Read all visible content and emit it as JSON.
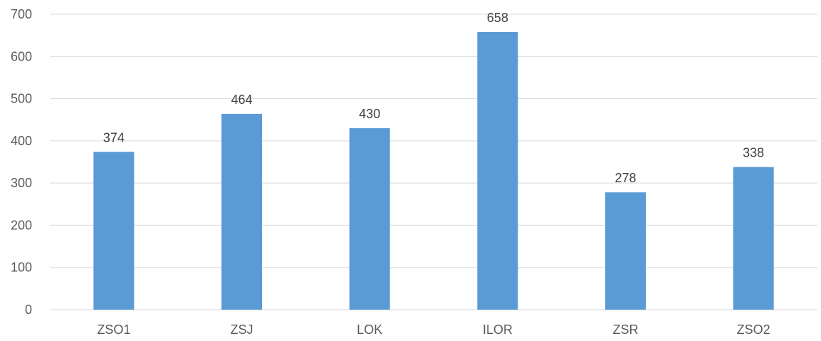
{
  "chart_data": {
    "type": "bar",
    "title": "",
    "xlabel": "",
    "ylabel": "",
    "categories": [
      "ZSO1",
      "ZSJ",
      "LOK",
      "ILOR",
      "ZSR",
      "ZSO2"
    ],
    "values": [
      374,
      464,
      430,
      658,
      278,
      338
    ],
    "ylim": [
      0,
      700
    ],
    "yticks": [
      0,
      100,
      200,
      300,
      400,
      500,
      600,
      700
    ],
    "grid": true,
    "legend": "none",
    "data_labels": true,
    "bar_color": "#5b9bd5"
  }
}
